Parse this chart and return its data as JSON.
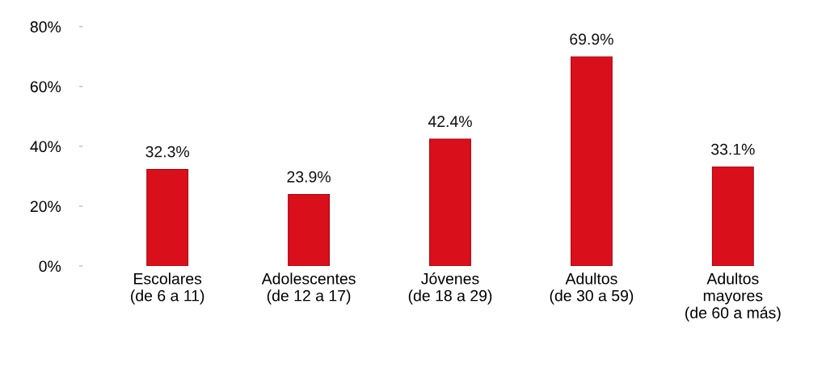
{
  "chart_data": {
    "type": "bar",
    "categories": [
      "Escolares\n(de 6 a 11)",
      "Adolescentes\n(de 12 a 17)",
      "Jóvenes\n(de 18 a 29)",
      "Adultos\n(de 30 a 59)",
      "Adultos\nmayores\n(de 60 a más)"
    ],
    "values": [
      32.3,
      23.9,
      42.4,
      69.9,
      33.1
    ],
    "value_labels": [
      "32.3%",
      "23.9%",
      "42.4%",
      "69.9%",
      "33.1%"
    ],
    "color": "#d9101c",
    "ylim": [
      0,
      80
    ],
    "yticks": [
      {
        "value": 0,
        "label": "0%"
      },
      {
        "value": 20,
        "label": "20%"
      },
      {
        "value": 40,
        "label": "40%"
      },
      {
        "value": 60,
        "label": "60%"
      },
      {
        "value": 80,
        "label": "80%"
      }
    ],
    "grid": false
  }
}
